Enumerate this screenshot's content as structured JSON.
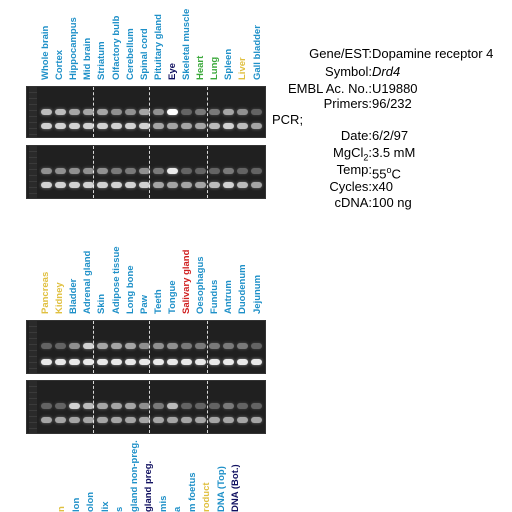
{
  "panel1": {
    "lanes": [
      {
        "label": "Whole brain",
        "color": "#1e90c8"
      },
      {
        "label": "Cortex",
        "color": "#1e90c8"
      },
      {
        "label": "Hippocampus",
        "color": "#1e90c8"
      },
      {
        "label": "Mid brain",
        "color": "#1e90c8"
      },
      {
        "label": "Striatum",
        "color": "#1e90c8"
      },
      {
        "label": "Olfactory bulb",
        "color": "#1e90c8"
      },
      {
        "label": "Cerebellum",
        "color": "#1e90c8"
      },
      {
        "label": "Spinal cord",
        "color": "#1e90c8"
      },
      {
        "label": "Pituitary gland",
        "color": "#1e90c8"
      },
      {
        "label": "Eye",
        "color": "#101060"
      },
      {
        "label": "Skeletal muscle",
        "color": "#1e90c8"
      },
      {
        "label": "Heart",
        "color": "#3aa83a"
      },
      {
        "label": "Lung",
        "color": "#3aa83a"
      },
      {
        "label": "Spleen",
        "color": "#1e90c8"
      },
      {
        "label": "Liver",
        "color": "#e0c040"
      },
      {
        "label": "Gall bladder",
        "color": "#1e90c8"
      }
    ]
  },
  "panel2": {
    "lanes": [
      {
        "label": "Pancreas",
        "color": "#e0c040"
      },
      {
        "label": "Kidney",
        "color": "#e0c040"
      },
      {
        "label": "Bladder",
        "color": "#1e90c8"
      },
      {
        "label": "Adrenal gland",
        "color": "#1e90c8"
      },
      {
        "label": "Skin",
        "color": "#1e90c8"
      },
      {
        "label": "Adipose tissue",
        "color": "#1e90c8"
      },
      {
        "label": "Long bone",
        "color": "#1e90c8"
      },
      {
        "label": "Paw",
        "color": "#1e90c8"
      },
      {
        "label": "Teeth",
        "color": "#1e90c8"
      },
      {
        "label": "Tongue",
        "color": "#1e90c8"
      },
      {
        "label": "Salivary gland",
        "color": "#d02020"
      },
      {
        "label": "Oesophagus",
        "color": "#1e90c8"
      },
      {
        "label": "Fundus",
        "color": "#1e90c8"
      },
      {
        "label": "Antrum",
        "color": "#1e90c8"
      },
      {
        "label": "Duodenum",
        "color": "#1e90c8"
      },
      {
        "label": "Jejunum",
        "color": "#1e90c8"
      }
    ]
  },
  "panel3": {
    "lanes": [
      {
        "label": "n",
        "color": "#e0c040"
      },
      {
        "label": "lon",
        "color": "#1e90c8"
      },
      {
        "label": "olon",
        "color": "#1e90c8"
      },
      {
        "label": "lix",
        "color": "#1e90c8"
      },
      {
        "label": "s",
        "color": "#1e90c8"
      },
      {
        "label": "gland non-preg.",
        "color": "#1e90c8"
      },
      {
        "label": "gland preg.",
        "color": "#101060"
      },
      {
        "label": "mis",
        "color": "#1e90c8"
      },
      {
        "label": "a",
        "color": "#1e90c8"
      },
      {
        "label": "m foetus",
        "color": "#1e90c8"
      },
      {
        "label": "roduct",
        "color": "#e0c040"
      },
      {
        "label": "DNA (Top)",
        "color": "#1e90c8"
      },
      {
        "label": "DNA (Bot.)",
        "color": "#101060"
      }
    ]
  },
  "info": {
    "gene_label": "Gene/EST:",
    "gene_value": "Dopamine receptor 4",
    "symbol_label": "Symbol:",
    "symbol_value": "Drd4",
    "embl_label": "EMBL Ac. No.:",
    "embl_value": "U19880",
    "primers_label": "Primers:",
    "primers_value": "96/232",
    "pcr_label": "PCR;",
    "date_label": "Date:",
    "date_value": "6/2/97",
    "mgcl_label_a": "MgCl",
    "mgcl_label_sub": "2",
    "mgcl_label_b": ":",
    "mgcl_value": "3.5 mM",
    "temp_label": "Temp:",
    "temp_value_a": "55",
    "temp_value_sup": "o",
    "temp_value_b": "C",
    "cycles_label": "Cycles:",
    "cycles_value": "x40",
    "cdna_label": "cDNA:",
    "cdna_value": "100 ng"
  }
}
